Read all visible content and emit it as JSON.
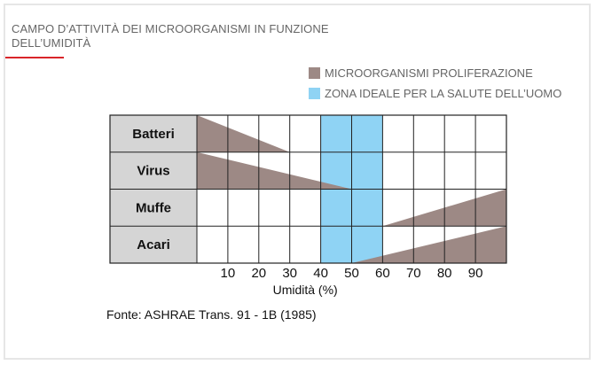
{
  "title": "CAMPO D’ATTIVITÀ DEI MICROORGANISMI IN FUNZIONE DELL’UMIDITÀ",
  "source": "Fonte: ASHRAE Trans. 91 - 1B (1985)",
  "colors": {
    "proliferation": "#9d8985",
    "ideal_zone": "#8fd3f4",
    "row_label_bg": "#d5d5d5",
    "accent": "#d9252a"
  },
  "legend": [
    {
      "label": "MICROORGANISMI PROLIFERAZIONE",
      "color": "#9d8985"
    },
    {
      "label": "ZONA IDEALE PER LA SALUTE DELL’UOMO",
      "color": "#8fd3f4"
    }
  ],
  "chart_data": {
    "type": "heatmap",
    "xlabel": "Umidità (%)",
    "xlim": [
      0,
      100
    ],
    "x_ticks": [
      10,
      20,
      30,
      40,
      50,
      60,
      70,
      80,
      90
    ],
    "grid": true,
    "ideal_zone": {
      "from": 40,
      "to": 60
    },
    "categories": [
      "Batteri",
      "Virus",
      "Muffe",
      "Acari"
    ],
    "series": [
      {
        "name": "Batteri",
        "decreasing": true,
        "from": 0,
        "to": 30
      },
      {
        "name": "Virus",
        "decreasing": true,
        "from": 0,
        "to": 50
      },
      {
        "name": "Muffe",
        "decreasing": false,
        "from": 60,
        "to": 100
      },
      {
        "name": "Acari",
        "decreasing": false,
        "from": 50,
        "to": 100
      }
    ]
  }
}
